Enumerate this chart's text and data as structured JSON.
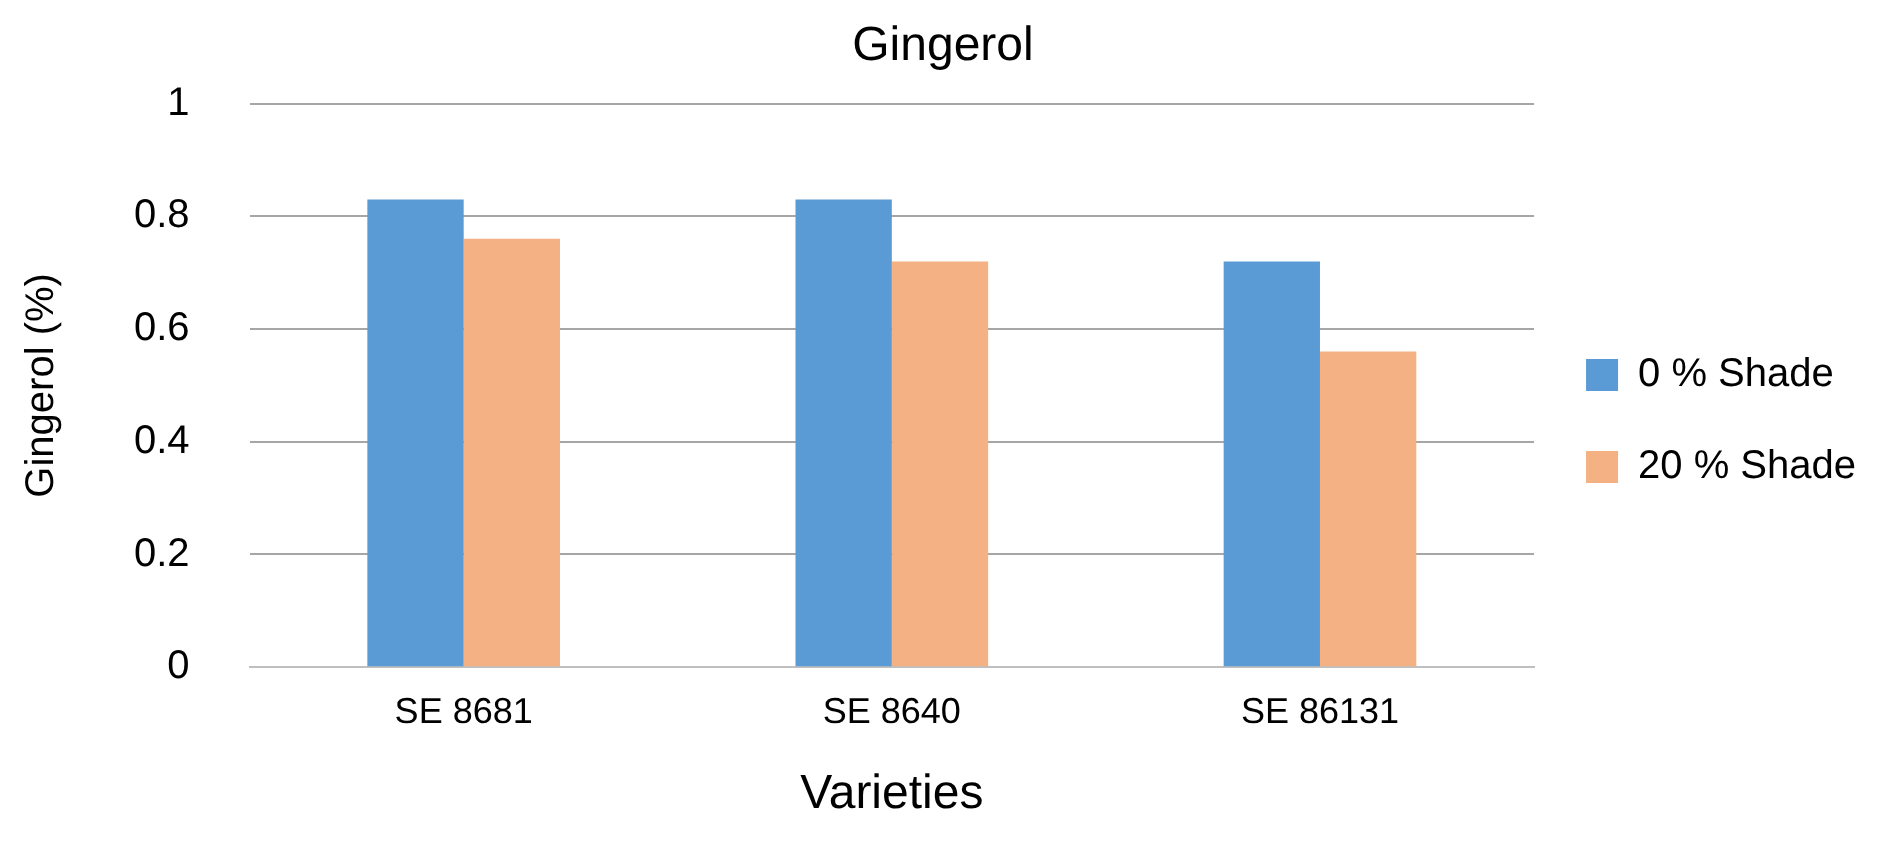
{
  "chart_data": {
    "type": "bar",
    "title": "Gingerol",
    "xlabel": "Varieties",
    "ylabel": "Gingerol (%)",
    "categories": [
      "SE 8681",
      "SE 8640",
      "SE 86131"
    ],
    "series": [
      {
        "name": "0 % Shade",
        "color": "#5b9bd5",
        "values": [
          0.83,
          0.83,
          0.72
        ]
      },
      {
        "name": "20 % Shade",
        "color": "#f4b183",
        "values": [
          0.76,
          0.72,
          0.56
        ]
      }
    ],
    "ylim": [
      0,
      1
    ],
    "yticks": [
      0,
      0.2,
      0.4,
      0.6,
      0.8,
      1
    ],
    "grid": "y",
    "legend": "right"
  }
}
